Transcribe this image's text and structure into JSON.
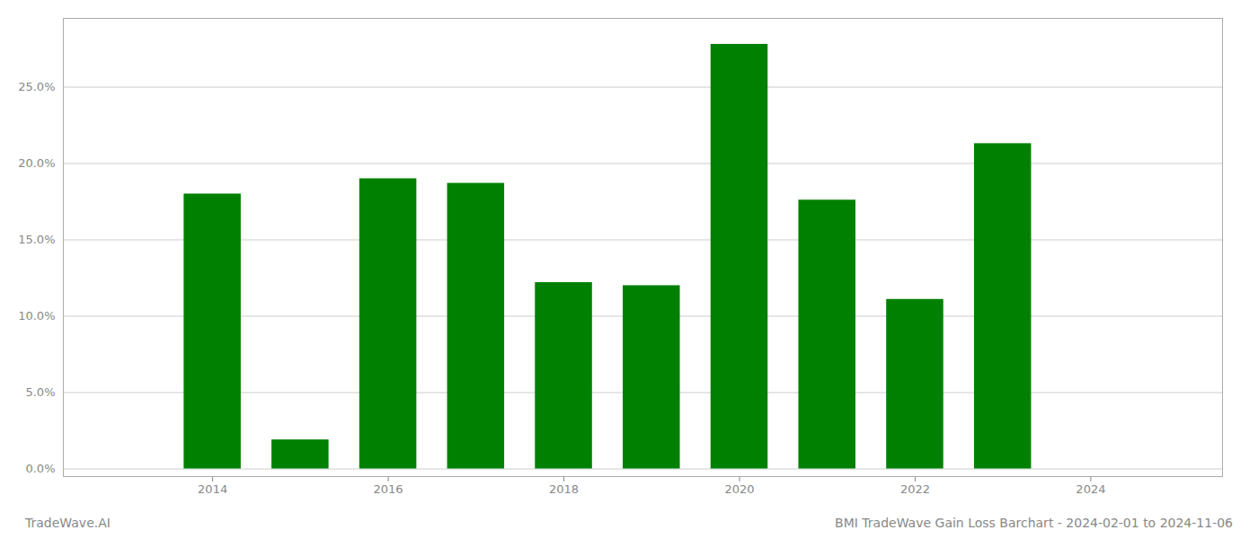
{
  "chart_data": {
    "type": "bar",
    "x": [
      2014,
      2015,
      2016,
      2017,
      2018,
      2019,
      2020,
      2021,
      2022,
      2023
    ],
    "values": [
      0.18,
      0.019,
      0.19,
      0.187,
      0.122,
      0.12,
      0.278,
      0.176,
      0.111,
      0.213
    ],
    "color": "#008000",
    "xlim": [
      2012.3,
      2025.5
    ],
    "xticks": [
      2014,
      2016,
      2018,
      2020,
      2022,
      2024
    ],
    "ylim": [
      -0.005,
      0.295
    ],
    "yticks": [
      {
        "value": 0.0,
        "label": "0.0%"
      },
      {
        "value": 0.05,
        "label": "5.0%"
      },
      {
        "value": 0.1,
        "label": "10.0%"
      },
      {
        "value": 0.15,
        "label": "15.0%"
      },
      {
        "value": 0.2,
        "label": "20.0%"
      },
      {
        "value": 0.25,
        "label": "25.0%"
      }
    ],
    "grid": true,
    "annotations": [
      "TradeWave.AI",
      "BMI TradeWave Gain Loss Barchart - 2024-02-01 to 2024-11-06"
    ]
  }
}
